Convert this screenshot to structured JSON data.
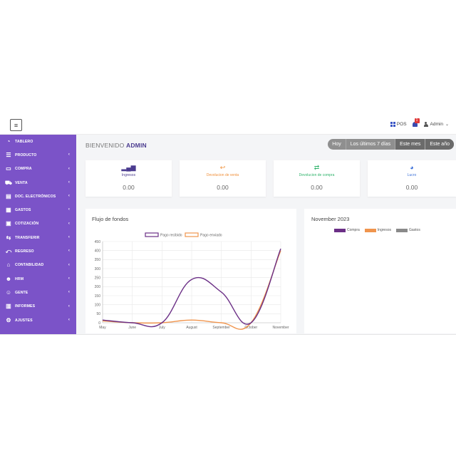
{
  "header": {
    "pos_label": "POS",
    "notification_count": "1",
    "user_label": "Admin"
  },
  "sidebar": {
    "items": [
      {
        "label": "TABLERO",
        "icon": "dashboard-icon",
        "glyph": "◔",
        "has_submenu": false
      },
      {
        "label": "PRODUCTO",
        "icon": "list-icon",
        "glyph": "☰",
        "has_submenu": true
      },
      {
        "label": "COMPRA",
        "icon": "card-icon",
        "glyph": "▭",
        "has_submenu": true
      },
      {
        "label": "VENTA",
        "icon": "cart-icon",
        "glyph": "⛟",
        "has_submenu": true
      },
      {
        "label": "DOC. ELECTRÓNICOS",
        "icon": "document-icon",
        "glyph": "▤",
        "has_submenu": true
      },
      {
        "label": "GASTOS",
        "icon": "calculator-icon",
        "glyph": "▦",
        "has_submenu": true
      },
      {
        "label": "COTIZACIÓN",
        "icon": "quote-icon",
        "glyph": "▣",
        "has_submenu": true
      },
      {
        "label": "TRANSFERIR",
        "icon": "transfer-icon",
        "glyph": "⇆",
        "has_submenu": true
      },
      {
        "label": "REGRESO",
        "icon": "return-icon",
        "glyph": "⤺",
        "has_submenu": true
      },
      {
        "label": "CONTABILIDAD",
        "icon": "bank-icon",
        "glyph": "⌂",
        "has_submenu": true
      },
      {
        "label": "HRM",
        "icon": "users-icon",
        "glyph": "☻",
        "has_submenu": true
      },
      {
        "label": "GENTE",
        "icon": "user-icon",
        "glyph": "☺",
        "has_submenu": true
      },
      {
        "label": "INFORMES",
        "icon": "report-icon",
        "glyph": "▥",
        "has_submenu": true
      },
      {
        "label": "AJUSTES",
        "icon": "gear-icon",
        "glyph": "⚙",
        "has_submenu": true
      }
    ]
  },
  "main": {
    "welcome_prefix": "BIENVENIDO",
    "welcome_user": "ADMIN",
    "periods": [
      {
        "label": "Hoy",
        "active": false
      },
      {
        "label": "Los últimos 7 días",
        "active": false
      },
      {
        "label": "Este mes",
        "active": true
      },
      {
        "label": "Este año",
        "active": true
      }
    ],
    "stats": [
      {
        "label": "Ingresos",
        "value": "0.00",
        "color": "#4a3b8f",
        "icon": "bar-chart-icon",
        "glyph": "▂▄▆"
      },
      {
        "label": "Devolucion de venta",
        "value": "0.00",
        "color": "#f0903a",
        "icon": "undo-icon",
        "glyph": "↩"
      },
      {
        "label": "Devolucion de compra",
        "value": "0.00",
        "color": "#2fb36b",
        "icon": "exchange-icon",
        "glyph": "⇄"
      },
      {
        "label": "Lucro",
        "value": "0.00",
        "color": "#3a6fd8",
        "icon": "pie-icon",
        "glyph": "◕"
      }
    ],
    "cashflow_title": "Flujo de fondos",
    "month_title": "November 2023",
    "pie_legend": [
      {
        "label": "Compra",
        "color": "#6b2f86"
      },
      {
        "label": "Ingresos",
        "color": "#f0954e"
      },
      {
        "label": "Gastos",
        "color": "#8a8a8a"
      }
    ]
  },
  "chart_data": {
    "type": "line",
    "title": "Flujo de fondos",
    "x": [
      "May",
      "June",
      "July",
      "August",
      "September",
      "October",
      "November"
    ],
    "series": [
      {
        "name": "Pago recibido",
        "color": "#6b2f86",
        "values": [
          15,
          0,
          0,
          240,
          170,
          0,
          410
        ]
      },
      {
        "name": "Pago enviado",
        "color": "#f0954e",
        "values": [
          10,
          0,
          0,
          15,
          0,
          0,
          400
        ]
      }
    ],
    "ylim": [
      0,
      450
    ],
    "yticks": [
      0,
      50,
      100,
      150,
      200,
      250,
      300,
      350,
      400,
      450
    ],
    "grid": true,
    "legend_position": "top"
  }
}
